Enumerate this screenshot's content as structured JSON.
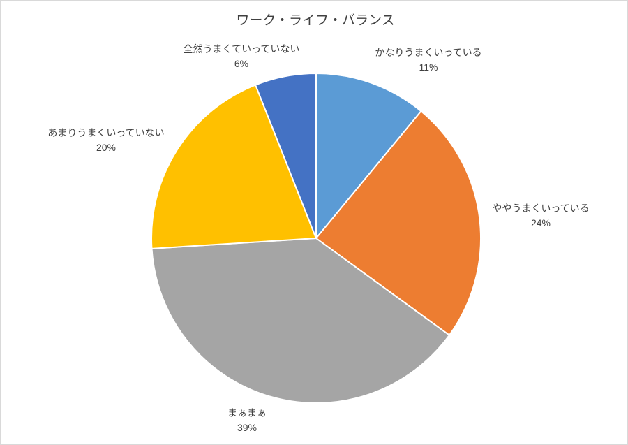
{
  "chart_data": {
    "type": "pie",
    "title": "ワーク・ライフ・バランス",
    "start_angle_deg": 0,
    "direction": "clockwise",
    "labels_show": "category-name-and-percentage",
    "legend": "none",
    "slice_border_color": "#ffffff",
    "background_color": "#ffffff",
    "frame_border_color": "#d9d9d9",
    "text_color": "#404040",
    "slices": [
      {
        "label": "かなりうまくいっている",
        "value": 11,
        "value_label": "11%",
        "color": "#5B9BD5"
      },
      {
        "label": "ややうまくいっている",
        "value": 24,
        "value_label": "24%",
        "color": "#ED7D31"
      },
      {
        "label": "まぁまぁ",
        "value": 39,
        "value_label": "39%",
        "color": "#A5A5A5"
      },
      {
        "label": "あまりうまくいっていない",
        "value": 20,
        "value_label": "20%",
        "color": "#FFC000"
      },
      {
        "label": "全然うまくていっていない",
        "value": 6,
        "value_label": "6%",
        "color": "#4472C4"
      }
    ]
  }
}
